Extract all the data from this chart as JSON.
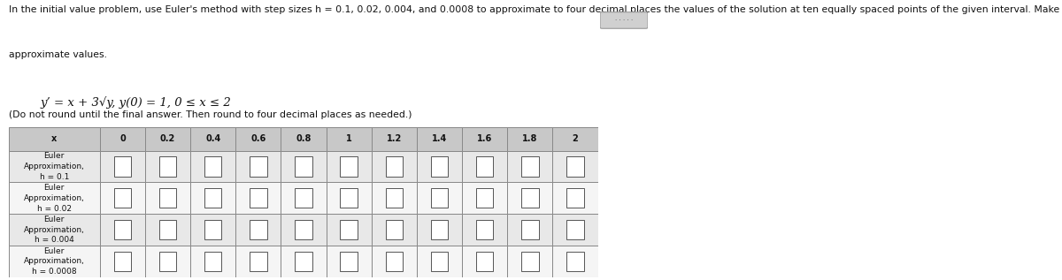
{
  "title_line1": "In the initial value problem, use Euler's method with step sizes h = 0.1, 0.02, 0.004, and 0.0008 to approximate to four decimal places the values of the solution at ten equally spaced points of the given interval. Make a table showing the",
  "title_line2": "approximate values.",
  "equation": "y’ = x + 3√y, y(0) = 1, 0 ≤ x ≤ 2",
  "subtitle": "(Do not round until the final answer. Then round to four decimal places as needed.)",
  "x_values": [
    "x",
    "0",
    "0.2",
    "0.4",
    "0.6",
    "0.8",
    "1",
    "1.2",
    "1.4",
    "1.6",
    "1.8",
    "2"
  ],
  "row_labels": [
    "Euler\nApproximation,\nh = 0.1",
    "Euler\nApproximation,\nh = 0.02",
    "Euler\nApproximation,\nh = 0.004",
    "Euler\nApproximation,\nh = 0.0008"
  ],
  "num_data_cols": 11,
  "num_rows": 4,
  "bg_color": "#ffffff",
  "header_bg": "#c8c8c8",
  "row_bg_even": "#e8e8e8",
  "row_bg_odd": "#f5f5f5",
  "grid_color": "#888888",
  "text_color": "#111111",
  "title_fontsize": 7.8,
  "eq_fontsize": 9.5,
  "subtitle_fontsize": 7.8,
  "table_fontsize": 7.0,
  "label_fontsize": 6.5
}
